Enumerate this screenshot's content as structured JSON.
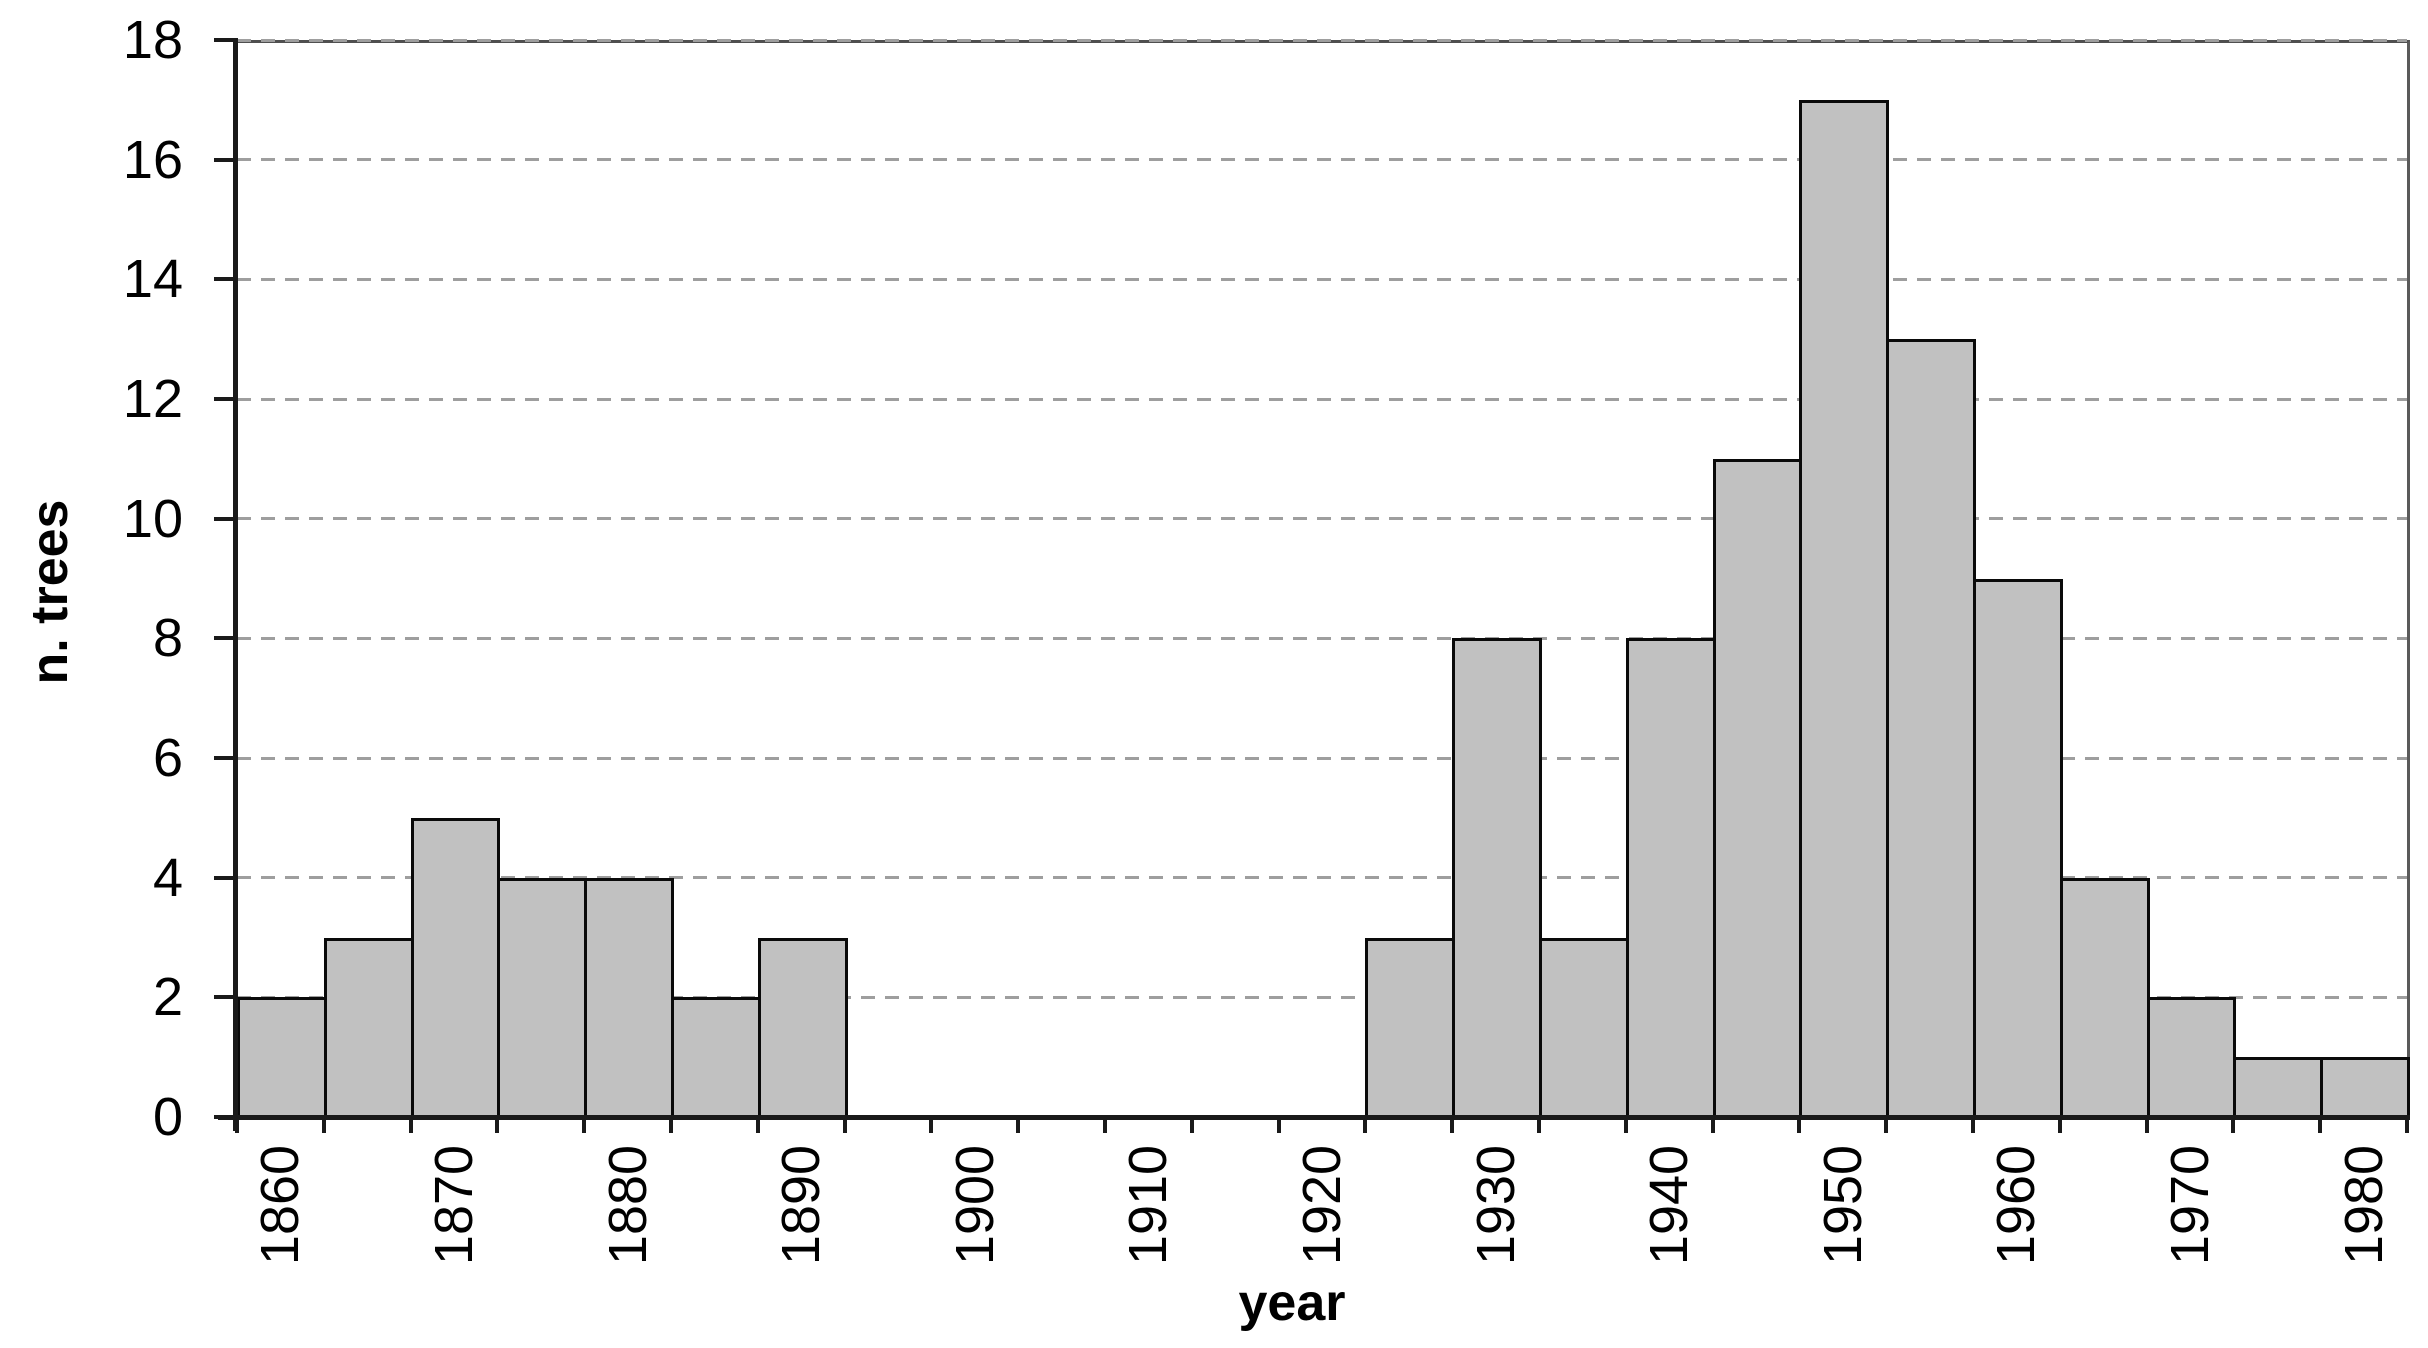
{
  "chart_data": {
    "type": "bar",
    "kind": "histogram",
    "title": "",
    "xlabel": "year",
    "ylabel": "n. trees",
    "bin_width_years": 5,
    "categories": [
      1860,
      1865,
      1870,
      1875,
      1880,
      1885,
      1890,
      1895,
      1900,
      1905,
      1910,
      1915,
      1920,
      1925,
      1930,
      1935,
      1940,
      1945,
      1950,
      1955,
      1960,
      1965,
      1970,
      1975,
      1980
    ],
    "values": [
      2,
      3,
      5,
      4,
      4,
      2,
      3,
      0,
      0,
      0,
      0,
      0,
      0,
      3,
      8,
      3,
      8,
      11,
      17,
      13,
      9,
      4,
      2,
      1,
      1
    ],
    "ylim": [
      0,
      18
    ],
    "ytick_interval": 2,
    "ytick_labels": [
      "0",
      "2",
      "4",
      "6",
      "8",
      "10",
      "12",
      "14",
      "16",
      "18"
    ],
    "xtick_labels_shown": [
      "1860",
      "1870",
      "1880",
      "1890",
      "1900",
      "1910",
      "1920",
      "1930",
      "1940",
      "1950",
      "1960",
      "1970",
      "1980"
    ],
    "x_label_every_n_bins": 2,
    "grid": "horizontal dashed lines at every y tick",
    "legend_position": "none",
    "colors": {
      "bar_fill": "#c1c1c1",
      "bar_border": "#0a0a0a",
      "gridline": "#9e9e9e",
      "axis": "#1a1a1a",
      "frame_top_right": "#4f4f4f",
      "background": "#ffffff",
      "text": "#000000"
    }
  }
}
